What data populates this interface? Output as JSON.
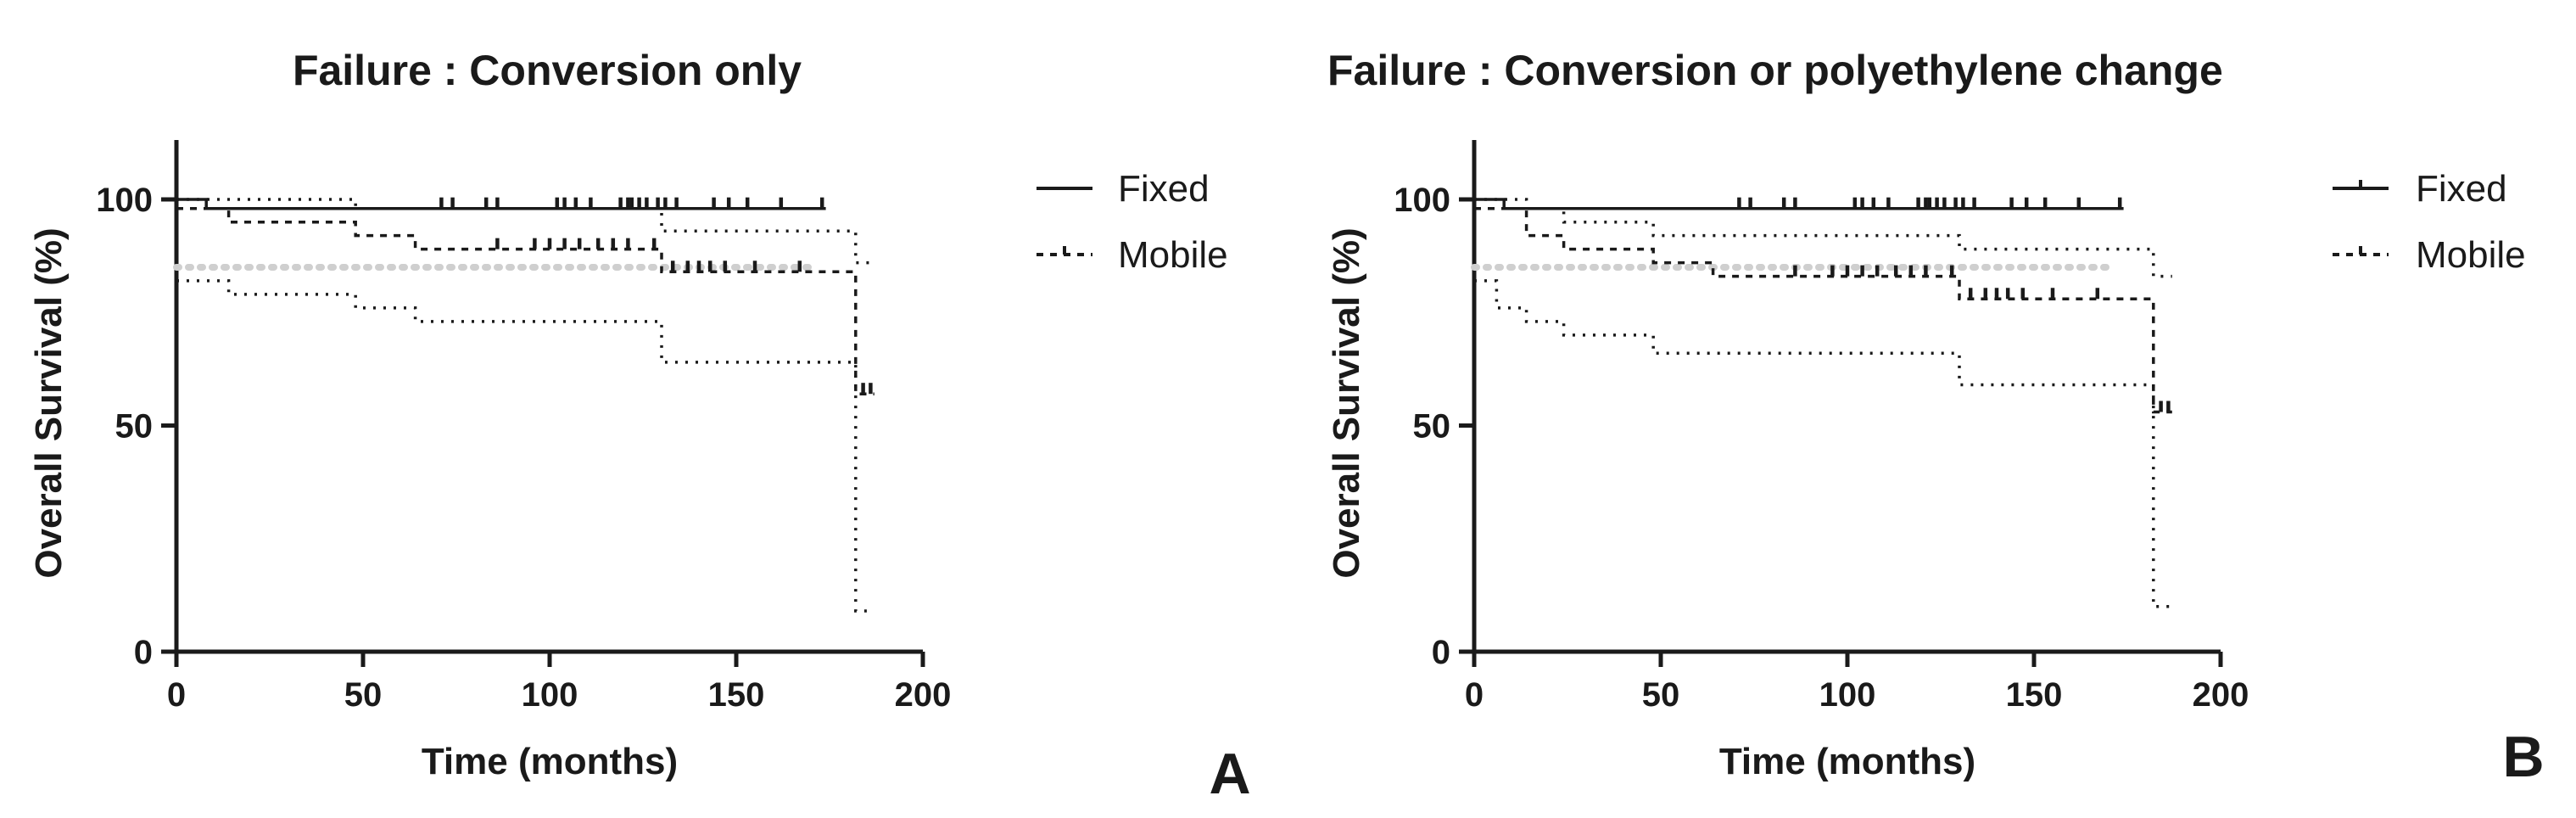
{
  "figure": {
    "colors": {
      "ink": "#1a1a1a",
      "reference_line": "#cfcfcf"
    }
  },
  "chart_data": [
    {
      "type": "line",
      "subtype": "kaplan-meier survival (step)",
      "panel_label": "A",
      "title": "Failure  : Conversion only",
      "xlabel": "Time (months)",
      "ylabel": "Overall Survival (%)",
      "xlim": [
        0,
        200
      ],
      "ylim": [
        0,
        110
      ],
      "xticks": [
        "0",
        "50",
        "100",
        "150",
        "200"
      ],
      "yticks": [
        "0",
        "50",
        "100"
      ],
      "grid": false,
      "legend_position": "right",
      "reference_line": {
        "y": 85,
        "style": "dotted",
        "color": "#cfcfcf",
        "x_range": [
          0,
          170
        ]
      },
      "series": [
        {
          "name": "Fixed",
          "line_style": "solid",
          "points": [
            [
              0,
              100
            ],
            [
              8,
              100
            ],
            [
              8,
              98
            ],
            [
              174,
              98
            ]
          ],
          "censor_x": [
            71,
            74,
            83,
            86,
            102,
            104,
            107,
            111,
            119,
            121,
            122,
            124,
            126,
            129,
            131,
            134,
            144,
            148,
            153,
            162,
            173
          ]
        },
        {
          "name": "Mobile",
          "line_style": "dashed",
          "points": [
            [
              0,
              98
            ],
            [
              14,
              98
            ],
            [
              14,
              95
            ],
            [
              48,
              95
            ],
            [
              48,
              92
            ],
            [
              64,
              92
            ],
            [
              64,
              89
            ],
            [
              130,
              89
            ],
            [
              130,
              84
            ],
            [
              182,
              84
            ],
            [
              182,
              57
            ],
            [
              187,
              57
            ]
          ],
          "censor_x": [
            86,
            96,
            100,
            104,
            108,
            113,
            117,
            121,
            128,
            133,
            137,
            140,
            143,
            147,
            155,
            167,
            184,
            186
          ],
          "ci_upper": [
            [
              0,
              100
            ],
            [
              48,
              100
            ],
            [
              48,
              98
            ],
            [
              130,
              98
            ],
            [
              130,
              93
            ],
            [
              182,
              93
            ],
            [
              182,
              86
            ],
            [
              187,
              86
            ]
          ],
          "ci_lower": [
            [
              0,
              82
            ],
            [
              14,
              82
            ],
            [
              14,
              79
            ],
            [
              48,
              79
            ],
            [
              48,
              76
            ],
            [
              64,
              76
            ],
            [
              64,
              73
            ],
            [
              130,
              73
            ],
            [
              130,
              64
            ],
            [
              182,
              64
            ],
            [
              182,
              9
            ],
            [
              187,
              9
            ]
          ]
        }
      ]
    },
    {
      "type": "line",
      "subtype": "kaplan-meier survival (step)",
      "panel_label": "B",
      "title": "Failure  : Conversion or polyethylene change",
      "xlabel": "Time (months)",
      "ylabel": "Overall Survival (%)",
      "xlim": [
        0,
        200
      ],
      "ylim": [
        0,
        110
      ],
      "xticks": [
        "0",
        "50",
        "100",
        "150",
        "200"
      ],
      "yticks": [
        "0",
        "50",
        "100"
      ],
      "grid": false,
      "legend_position": "right",
      "reference_line": {
        "y": 85,
        "style": "dotted",
        "color": "#cfcfcf",
        "x_range": [
          0,
          170
        ]
      },
      "series": [
        {
          "name": "Fixed",
          "line_style": "solid",
          "points": [
            [
              0,
              100
            ],
            [
              8,
              100
            ],
            [
              8,
              98
            ],
            [
              174,
              98
            ]
          ],
          "censor_x": [
            71,
            74,
            83,
            86,
            102,
            104,
            107,
            111,
            119,
            121,
            122,
            124,
            126,
            129,
            131,
            134,
            144,
            148,
            153,
            162,
            173
          ]
        },
        {
          "name": "Mobile",
          "line_style": "dashed",
          "points": [
            [
              0,
              98
            ],
            [
              14,
              98
            ],
            [
              14,
              92
            ],
            [
              24,
              92
            ],
            [
              24,
              89
            ],
            [
              48,
              89
            ],
            [
              48,
              86
            ],
            [
              64,
              86
            ],
            [
              64,
              83
            ],
            [
              130,
              83
            ],
            [
              130,
              78
            ],
            [
              182,
              78
            ],
            [
              182,
              53
            ],
            [
              187,
              53
            ]
          ],
          "censor_x": [
            86,
            96,
            100,
            104,
            108,
            113,
            117,
            121,
            128,
            133,
            137,
            140,
            143,
            147,
            155,
            167,
            184,
            186
          ],
          "ci_upper": [
            [
              0,
              100
            ],
            [
              14,
              100
            ],
            [
              14,
              98
            ],
            [
              24,
              98
            ],
            [
              24,
              95
            ],
            [
              48,
              95
            ],
            [
              48,
              92
            ],
            [
              130,
              92
            ],
            [
              130,
              89
            ],
            [
              182,
              89
            ],
            [
              182,
              83
            ],
            [
              187,
              83
            ]
          ],
          "ci_lower": [
            [
              0,
              82
            ],
            [
              6,
              82
            ],
            [
              6,
              76
            ],
            [
              14,
              76
            ],
            [
              14,
              73
            ],
            [
              24,
              73
            ],
            [
              24,
              70
            ],
            [
              48,
              70
            ],
            [
              48,
              66
            ],
            [
              64,
              66
            ],
            [
              64,
              66
            ],
            [
              130,
              66
            ],
            [
              130,
              59
            ],
            [
              182,
              59
            ],
            [
              182,
              10
            ],
            [
              187,
              10
            ]
          ]
        }
      ]
    }
  ]
}
